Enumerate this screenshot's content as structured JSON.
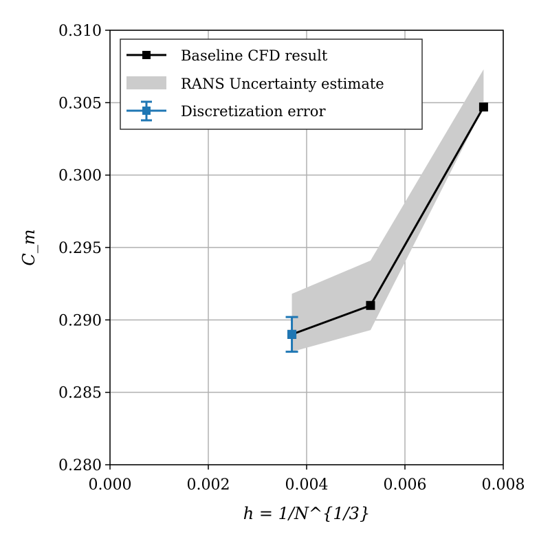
{
  "chart_data": {
    "type": "line",
    "xlabel": "h = 1/N^{1/3}",
    "ylabel": "C_m",
    "xlim": [
      0.0,
      0.008
    ],
    "ylim": [
      0.28,
      0.31
    ],
    "xticks": [
      "0.000",
      "0.002",
      "0.004",
      "0.006",
      "0.008"
    ],
    "yticks": [
      "0.280",
      "0.285",
      "0.290",
      "0.295",
      "0.300",
      "0.305",
      "0.310"
    ],
    "grid": true,
    "legend_position": "top-left",
    "series": [
      {
        "name": "Baseline CFD result",
        "kind": "line-marker",
        "color": "#000000",
        "x": [
          0.0037,
          0.0053,
          0.0076
        ],
        "y": [
          0.289,
          0.291,
          0.3047
        ]
      },
      {
        "name": "RANS Uncertainty estimate",
        "kind": "band",
        "color": "#cccccc",
        "x": [
          0.0037,
          0.0053,
          0.0076
        ],
        "y_low": [
          0.2878,
          0.2893,
          0.3047
        ],
        "y_high": [
          0.2918,
          0.2941,
          0.3073
        ]
      },
      {
        "name": "Discretization error",
        "kind": "errorbar",
        "color": "#1f77b4",
        "x": [
          0.0037
        ],
        "y": [
          0.289
        ],
        "yerr": [
          0.0012
        ]
      }
    ]
  }
}
